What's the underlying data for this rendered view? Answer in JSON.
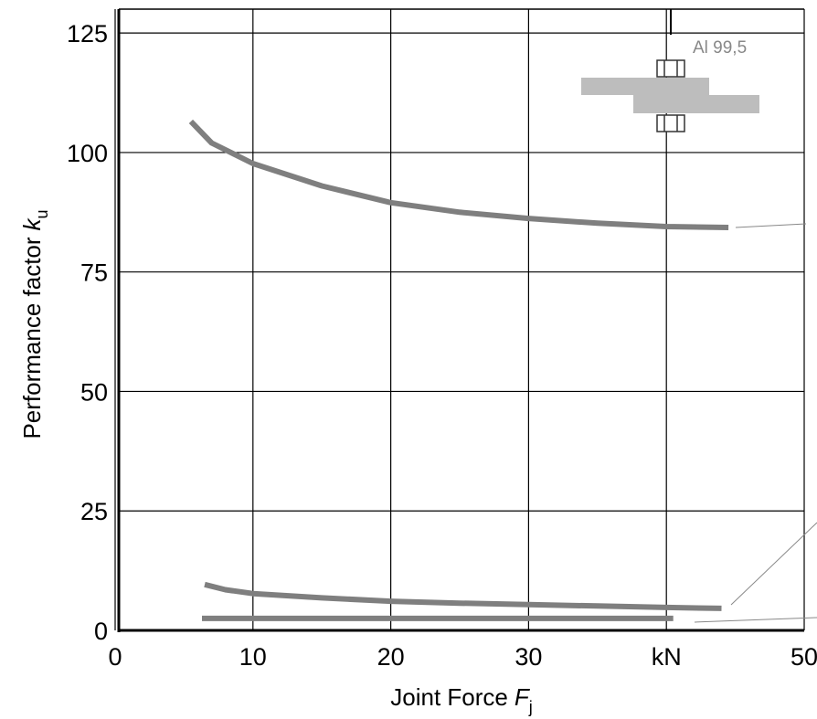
{
  "chart_data": {
    "type": "line",
    "xlabel": {
      "text": "Joint Force",
      "symbol": "F",
      "subscript": "j"
    },
    "ylabel": {
      "text": "Performance factor",
      "symbol": "k",
      "subscript": "u"
    },
    "annotation": "Al 99,5",
    "xlim": [
      0,
      50
    ],
    "ylim": [
      0,
      130
    ],
    "xticks": [
      0,
      10,
      20,
      30,
      {
        "value": 40,
        "label": "kN"
      },
      50
    ],
    "yticks": [
      0,
      25,
      50,
      75,
      100,
      125
    ],
    "grid": true,
    "series": [
      {
        "color": "#7f7f7f",
        "x": [
          5.5,
          7,
          10,
          15,
          20,
          25,
          30,
          35,
          40,
          44.5
        ],
        "values": [
          106.5,
          102,
          97.7,
          93,
          89.5,
          87.5,
          86.2,
          85.2,
          84.5,
          84.3
        ]
      },
      {
        "color": "#7f7f7f",
        "x": [
          6.5,
          8,
          10,
          15,
          20,
          25,
          30,
          35,
          40,
          44
        ],
        "values": [
          9.6,
          8.5,
          7.7,
          6.8,
          6.1,
          5.7,
          5.4,
          5.1,
          4.8,
          4.6
        ]
      },
      {
        "color": "#7f7f7f",
        "x": [
          6.3,
          40.5
        ],
        "values": [
          2.5,
          2.5
        ]
      }
    ]
  }
}
